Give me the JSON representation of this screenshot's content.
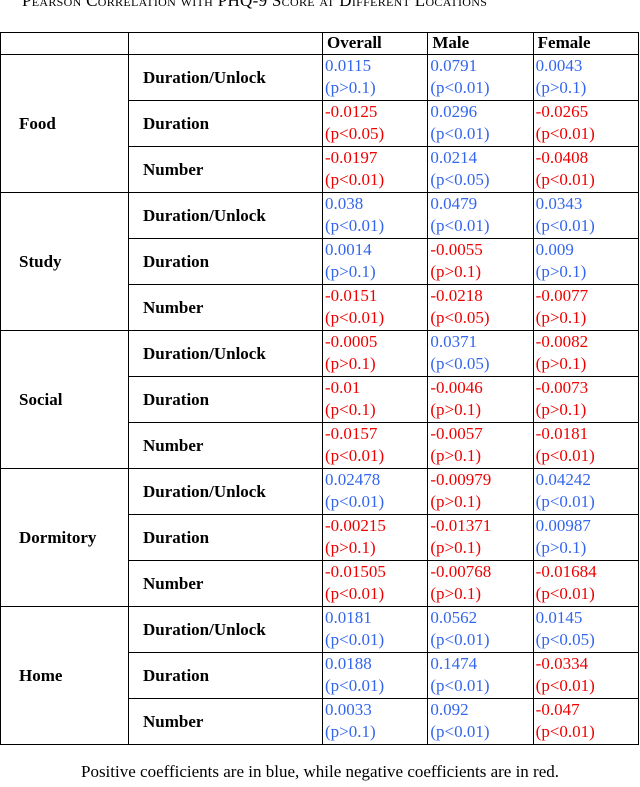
{
  "header": {
    "title": "Pearson Correlation with PHQ-9 Score at Different Locations"
  },
  "colors": {
    "positive": "#3366ee",
    "negative": "#ee0000"
  },
  "table": {
    "columns": [
      "Overall",
      "Male",
      "Female"
    ],
    "groups": [
      {
        "name": "Food",
        "rows": [
          {
            "label": "Duration/Unlock",
            "cells": [
              [
                "0.0115",
                "(p>0.1)"
              ],
              [
                "0.0791",
                "(p<0.01)"
              ],
              [
                "0.0043",
                "(p>0.1)"
              ]
            ]
          },
          {
            "label": "Duration",
            "cells": [
              [
                "-0.0125",
                "(p<0.05)"
              ],
              [
                "0.0296",
                "(p<0.01)"
              ],
              [
                "-0.0265",
                "(p<0.01)"
              ]
            ]
          },
          {
            "label": "Number",
            "cells": [
              [
                "-0.0197",
                "(p<0.01)"
              ],
              [
                "0.0214",
                "(p<0.05)"
              ],
              [
                "-0.0408",
                "(p<0.01)"
              ]
            ]
          }
        ]
      },
      {
        "name": "Study",
        "rows": [
          {
            "label": "Duration/Unlock",
            "cells": [
              [
                "0.038",
                "(p<0.01)"
              ],
              [
                "0.0479",
                "(p<0.01)"
              ],
              [
                "0.0343",
                "(p<0.01)"
              ]
            ]
          },
          {
            "label": "Duration",
            "cells": [
              [
                "0.0014",
                "(p>0.1)"
              ],
              [
                "-0.0055",
                "(p>0.1)"
              ],
              [
                "0.009",
                "(p>0.1)"
              ]
            ]
          },
          {
            "label": "Number",
            "cells": [
              [
                "-0.0151",
                "(p<0.01)"
              ],
              [
                "-0.0218",
                "(p<0.05)"
              ],
              [
                "-0.0077",
                "(p>0.1)"
              ]
            ]
          }
        ]
      },
      {
        "name": "Social",
        "rows": [
          {
            "label": "Duration/Unlock",
            "cells": [
              [
                "-0.0005",
                "(p>0.1)"
              ],
              [
                "0.0371",
                "(p<0.05)"
              ],
              [
                "-0.0082",
                "(p>0.1)"
              ]
            ]
          },
          {
            "label": "Duration",
            "cells": [
              [
                "-0.01",
                "(p<0.1)"
              ],
              [
                "-0.0046",
                "(p>0.1)"
              ],
              [
                "-0.0073",
                "(p>0.1)"
              ]
            ]
          },
          {
            "label": "Number",
            "cells": [
              [
                "-0.0157",
                "(p<0.01)"
              ],
              [
                "-0.0057",
                "(p>0.1)"
              ],
              [
                "-0.0181",
                "(p<0.01)"
              ]
            ]
          }
        ]
      },
      {
        "name": "Dormitory",
        "rows": [
          {
            "label": "Duration/Unlock",
            "cells": [
              [
                "0.02478",
                "(p<0.01)"
              ],
              [
                "-0.00979",
                "(p>0.1)"
              ],
              [
                "0.04242",
                "(p<0.01)"
              ]
            ]
          },
          {
            "label": "Duration",
            "cells": [
              [
                "-0.00215",
                "(p>0.1)"
              ],
              [
                "-0.01371",
                "(p>0.1)"
              ],
              [
                "0.00987",
                "(p>0.1)"
              ]
            ]
          },
          {
            "label": "Number",
            "cells": [
              [
                "-0.01505",
                "(p<0.01)"
              ],
              [
                "-0.00768",
                "(p>0.1)"
              ],
              [
                "-0.01684",
                "(p<0.01)"
              ]
            ]
          }
        ]
      },
      {
        "name": "Home",
        "rows": [
          {
            "label": "Duration/Unlock",
            "cells": [
              [
                "0.0181",
                "(p<0.01)"
              ],
              [
                "0.0562",
                "(p<0.01)"
              ],
              [
                "0.0145",
                "(p<0.05)"
              ]
            ]
          },
          {
            "label": "Duration",
            "cells": [
              [
                "0.0188",
                "(p<0.01)"
              ],
              [
                "0.1474",
                "(p<0.01)"
              ],
              [
                "-0.0334",
                "(p<0.01)"
              ]
            ]
          },
          {
            "label": "Number",
            "cells": [
              [
                "0.0033",
                "(p>0.1)"
              ],
              [
                "0.092",
                "(p<0.01)"
              ],
              [
                "-0.047",
                "(p<0.01)"
              ]
            ]
          }
        ]
      }
    ]
  },
  "footnote": "Positive coefficients are in blue, while negative coefficients are in red."
}
